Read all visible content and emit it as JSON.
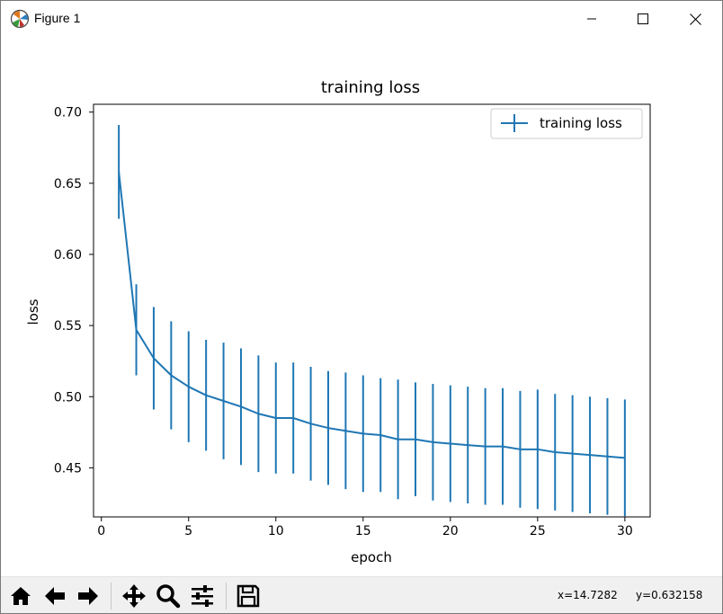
{
  "window": {
    "title": "Figure 1",
    "icons": [
      "app-icon",
      "minimize-icon",
      "maximize-icon",
      "close-icon"
    ]
  },
  "toolbar": {
    "icons": [
      "home-icon",
      "back-icon",
      "forward-icon",
      "pan-icon",
      "zoom-icon",
      "configure-subplots-icon",
      "save-icon"
    ],
    "x_readout": "x=14.7282",
    "y_readout": "y=0.632158"
  },
  "colors": {
    "series": "#1f77b4",
    "toolbar_bg": "#f0f0f0"
  },
  "chart_data": {
    "type": "line",
    "title": "training loss",
    "xlabel": "epoch",
    "ylabel": "loss",
    "xlim": [
      -0.45,
      31.45
    ],
    "ylim": [
      0.4155,
      0.7055
    ],
    "x_ticks": [
      0,
      5,
      10,
      15,
      20,
      25,
      30
    ],
    "x_tick_labels": [
      "0",
      "5",
      "10",
      "15",
      "20",
      "25",
      "30"
    ],
    "y_ticks": [
      0.45,
      0.5,
      0.55,
      0.6,
      0.65,
      0.7
    ],
    "y_tick_labels": [
      "0.45",
      "0.50",
      "0.55",
      "0.60",
      "0.65",
      "0.70"
    ],
    "grid": false,
    "legend": {
      "position": "top-right",
      "entries": [
        "training loss"
      ]
    },
    "series": [
      {
        "name": "training loss",
        "color": "#1f77b4",
        "x": [
          1,
          2,
          3,
          4,
          5,
          6,
          7,
          8,
          9,
          10,
          11,
          12,
          13,
          14,
          15,
          16,
          17,
          18,
          19,
          20,
          21,
          22,
          23,
          24,
          25,
          26,
          27,
          28,
          29,
          30
        ],
        "y": [
          0.658,
          0.547,
          0.527,
          0.515,
          0.507,
          0.501,
          0.497,
          0.493,
          0.488,
          0.485,
          0.485,
          0.481,
          0.478,
          0.476,
          0.474,
          0.473,
          0.47,
          0.47,
          0.468,
          0.467,
          0.466,
          0.465,
          0.465,
          0.463,
          0.463,
          0.461,
          0.46,
          0.459,
          0.458,
          0.457
        ],
        "yerr": [
          0.033,
          0.032,
          0.036,
          0.038,
          0.039,
          0.039,
          0.041,
          0.041,
          0.041,
          0.039,
          0.039,
          0.04,
          0.04,
          0.041,
          0.041,
          0.04,
          0.042,
          0.04,
          0.041,
          0.041,
          0.041,
          0.041,
          0.041,
          0.041,
          0.042,
          0.041,
          0.041,
          0.041,
          0.041,
          0.041
        ]
      }
    ]
  }
}
